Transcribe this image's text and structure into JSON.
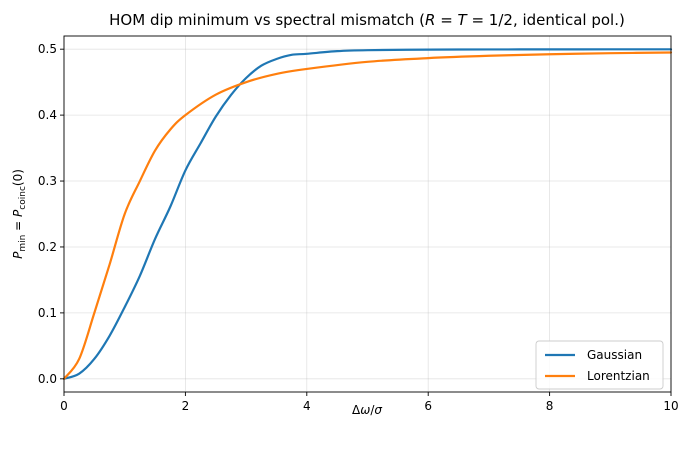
{
  "chart_data": {
    "type": "line",
    "title": {
      "prefix": "HOM dip minimum vs spectral mismatch (",
      "R": "R",
      "eq1": " = ",
      "T": "T",
      "eq2": " = 1/2, identical pol.)"
    },
    "xlabel": {
      "delta": "Δ",
      "omega": "ω",
      "slash": "/",
      "sigma": "σ"
    },
    "ylabel": {
      "P": "P",
      "min": "min",
      "eq": " = ",
      "P2": "P",
      "coinc": "coinc",
      "arg": "(0)"
    },
    "xlim": [
      0,
      10
    ],
    "ylim": [
      -0.02,
      0.52
    ],
    "xticks": [
      0,
      2,
      4,
      6,
      8,
      10
    ],
    "xtick_labels": [
      "0",
      "2",
      "4",
      "6",
      "8",
      "10"
    ],
    "yticks": [
      0.0,
      0.1,
      0.2,
      0.3,
      0.4,
      0.5
    ],
    "ytick_labels": [
      "0.0",
      "0.1",
      "0.2",
      "0.3",
      "0.4",
      "0.5"
    ],
    "grid": true,
    "legend_position": "lower-right",
    "series": [
      {
        "name": "Gaussian",
        "color": "#1f77b4",
        "x": [
          0,
          0.25,
          0.5,
          0.75,
          1.0,
          1.25,
          1.5,
          1.75,
          2.0,
          2.25,
          2.5,
          2.75,
          3.0,
          3.25,
          3.5,
          3.75,
          4.0,
          4.5,
          5.0,
          6.0,
          7.0,
          8.0,
          9.0,
          10.0
        ],
        "y": [
          0.0,
          0.0078,
          0.0303,
          0.0651,
          0.1088,
          0.1563,
          0.2122,
          0.2608,
          0.3161,
          0.3573,
          0.3977,
          0.4304,
          0.4563,
          0.4749,
          0.4851,
          0.4914,
          0.493,
          0.497,
          0.4985,
          0.4993,
          0.4996,
          0.4997,
          0.4998,
          0.4998
        ]
      },
      {
        "name": "Lorentzian",
        "color": "#ff7f0e",
        "x": [
          0,
          0.25,
          0.5,
          0.75,
          1.0,
          1.25,
          1.5,
          1.75,
          2.0,
          2.5,
          3.0,
          3.5,
          4.0,
          5.0,
          6.0,
          7.0,
          8.0,
          9.0,
          10.0
        ],
        "y": [
          0.0,
          0.0301,
          0.1,
          0.1731,
          0.25,
          0.3,
          0.3462,
          0.378,
          0.4,
          0.431,
          0.45,
          0.4625,
          0.47,
          0.4808,
          0.4865,
          0.49,
          0.4923,
          0.4939,
          0.495
        ]
      }
    ]
  }
}
